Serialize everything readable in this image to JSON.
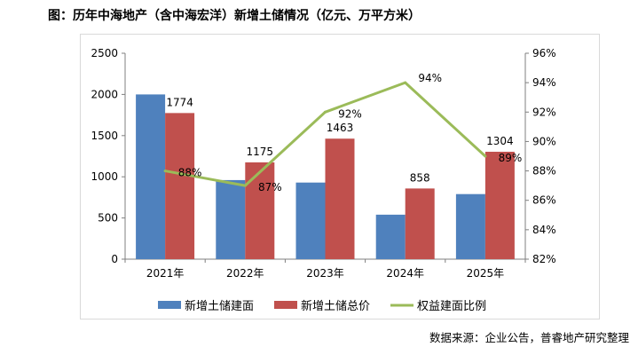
{
  "title": "图：历年中海地产（含中海宏洋）新增土储情况（亿元、万平方米）",
  "source": "数据来源：企业公告，普睿地产研究整理",
  "chart_data": {
    "type": "bar",
    "categories": [
      "2021年",
      "2022年",
      "2023年",
      "2024年",
      "2025年"
    ],
    "series": [
      {
        "name": "新增土储建面",
        "type": "bar",
        "axis": "left",
        "color": "#4f81bd",
        "values": [
          2000,
          960,
          930,
          540,
          790
        ],
        "labels": [
          "",
          "",
          "",
          "",
          ""
        ]
      },
      {
        "name": "新增土储总价",
        "type": "bar",
        "axis": "left",
        "color": "#c0504d",
        "values": [
          1774,
          1175,
          1463,
          858,
          1304
        ],
        "labels": [
          "1774",
          "1175",
          "1463",
          "858",
          "1304"
        ]
      },
      {
        "name": "权益建面比例",
        "type": "line",
        "axis": "right",
        "color": "#9bbb59",
        "values": [
          88,
          87,
          92,
          94,
          89
        ],
        "labels": [
          "88%",
          "87%",
          "92%",
          "94%",
          "89%"
        ]
      }
    ],
    "y_left": {
      "min": 0,
      "max": 2500,
      "ticks": [
        "0",
        "500",
        "1000",
        "1500",
        "2000",
        "2500"
      ]
    },
    "y_right": {
      "min": 82,
      "max": 96,
      "ticks": [
        "82%",
        "84%",
        "86%",
        "88%",
        "90%",
        "92%",
        "94%",
        "96%"
      ]
    },
    "legend_position": "bottom"
  }
}
